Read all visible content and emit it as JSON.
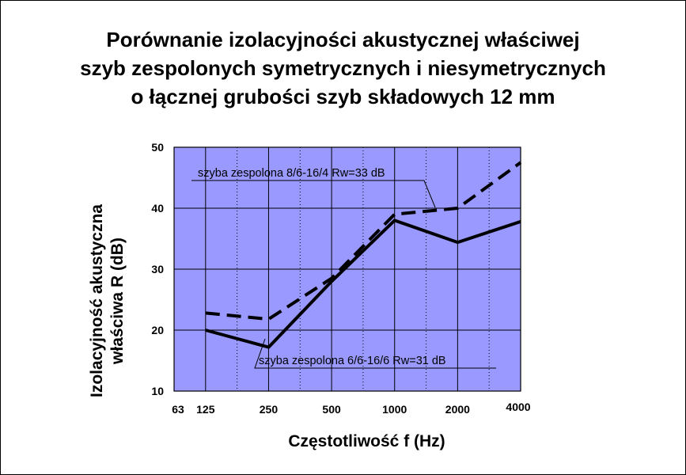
{
  "chart_data": {
    "type": "line",
    "title": [
      "Porównanie izolacyjności akustycznej właściwej",
      "szyb zespolonych symetrycznych i niesymetrycznych",
      "o łącznej grubości szyb składowych 12 mm"
    ],
    "xlabel": "Częstotliwość  f  (Hz)",
    "ylabel": [
      "Izolacyjność akustyczna",
      "właściwa  R  (dB)"
    ],
    "x_scale": "log",
    "x_ticks": [
      "63",
      "125",
      "250",
      "500",
      "1000",
      "2000",
      "4000"
    ],
    "y_ticks": [
      10,
      20,
      30,
      40,
      50
    ],
    "ylim": [
      10,
      50
    ],
    "grid": true,
    "plot_background": "#9999ff",
    "series": [
      {
        "name": "szyba zespolona 8/6-16/4 Rw=33 dB",
        "style": "dashed",
        "x": [
          125,
          250,
          500,
          1000,
          2000,
          4000
        ],
        "y": [
          22.8,
          21.8,
          28.5,
          39,
          40,
          47.5
        ]
      },
      {
        "name": "szyba zespolona  6/6-16/6 Rw=31 dB",
        "style": "solid",
        "x": [
          125,
          250,
          500,
          1000,
          2000,
          4000
        ],
        "y": [
          20,
          17.2,
          28,
          38,
          34.4,
          37.8
        ]
      }
    ]
  }
}
